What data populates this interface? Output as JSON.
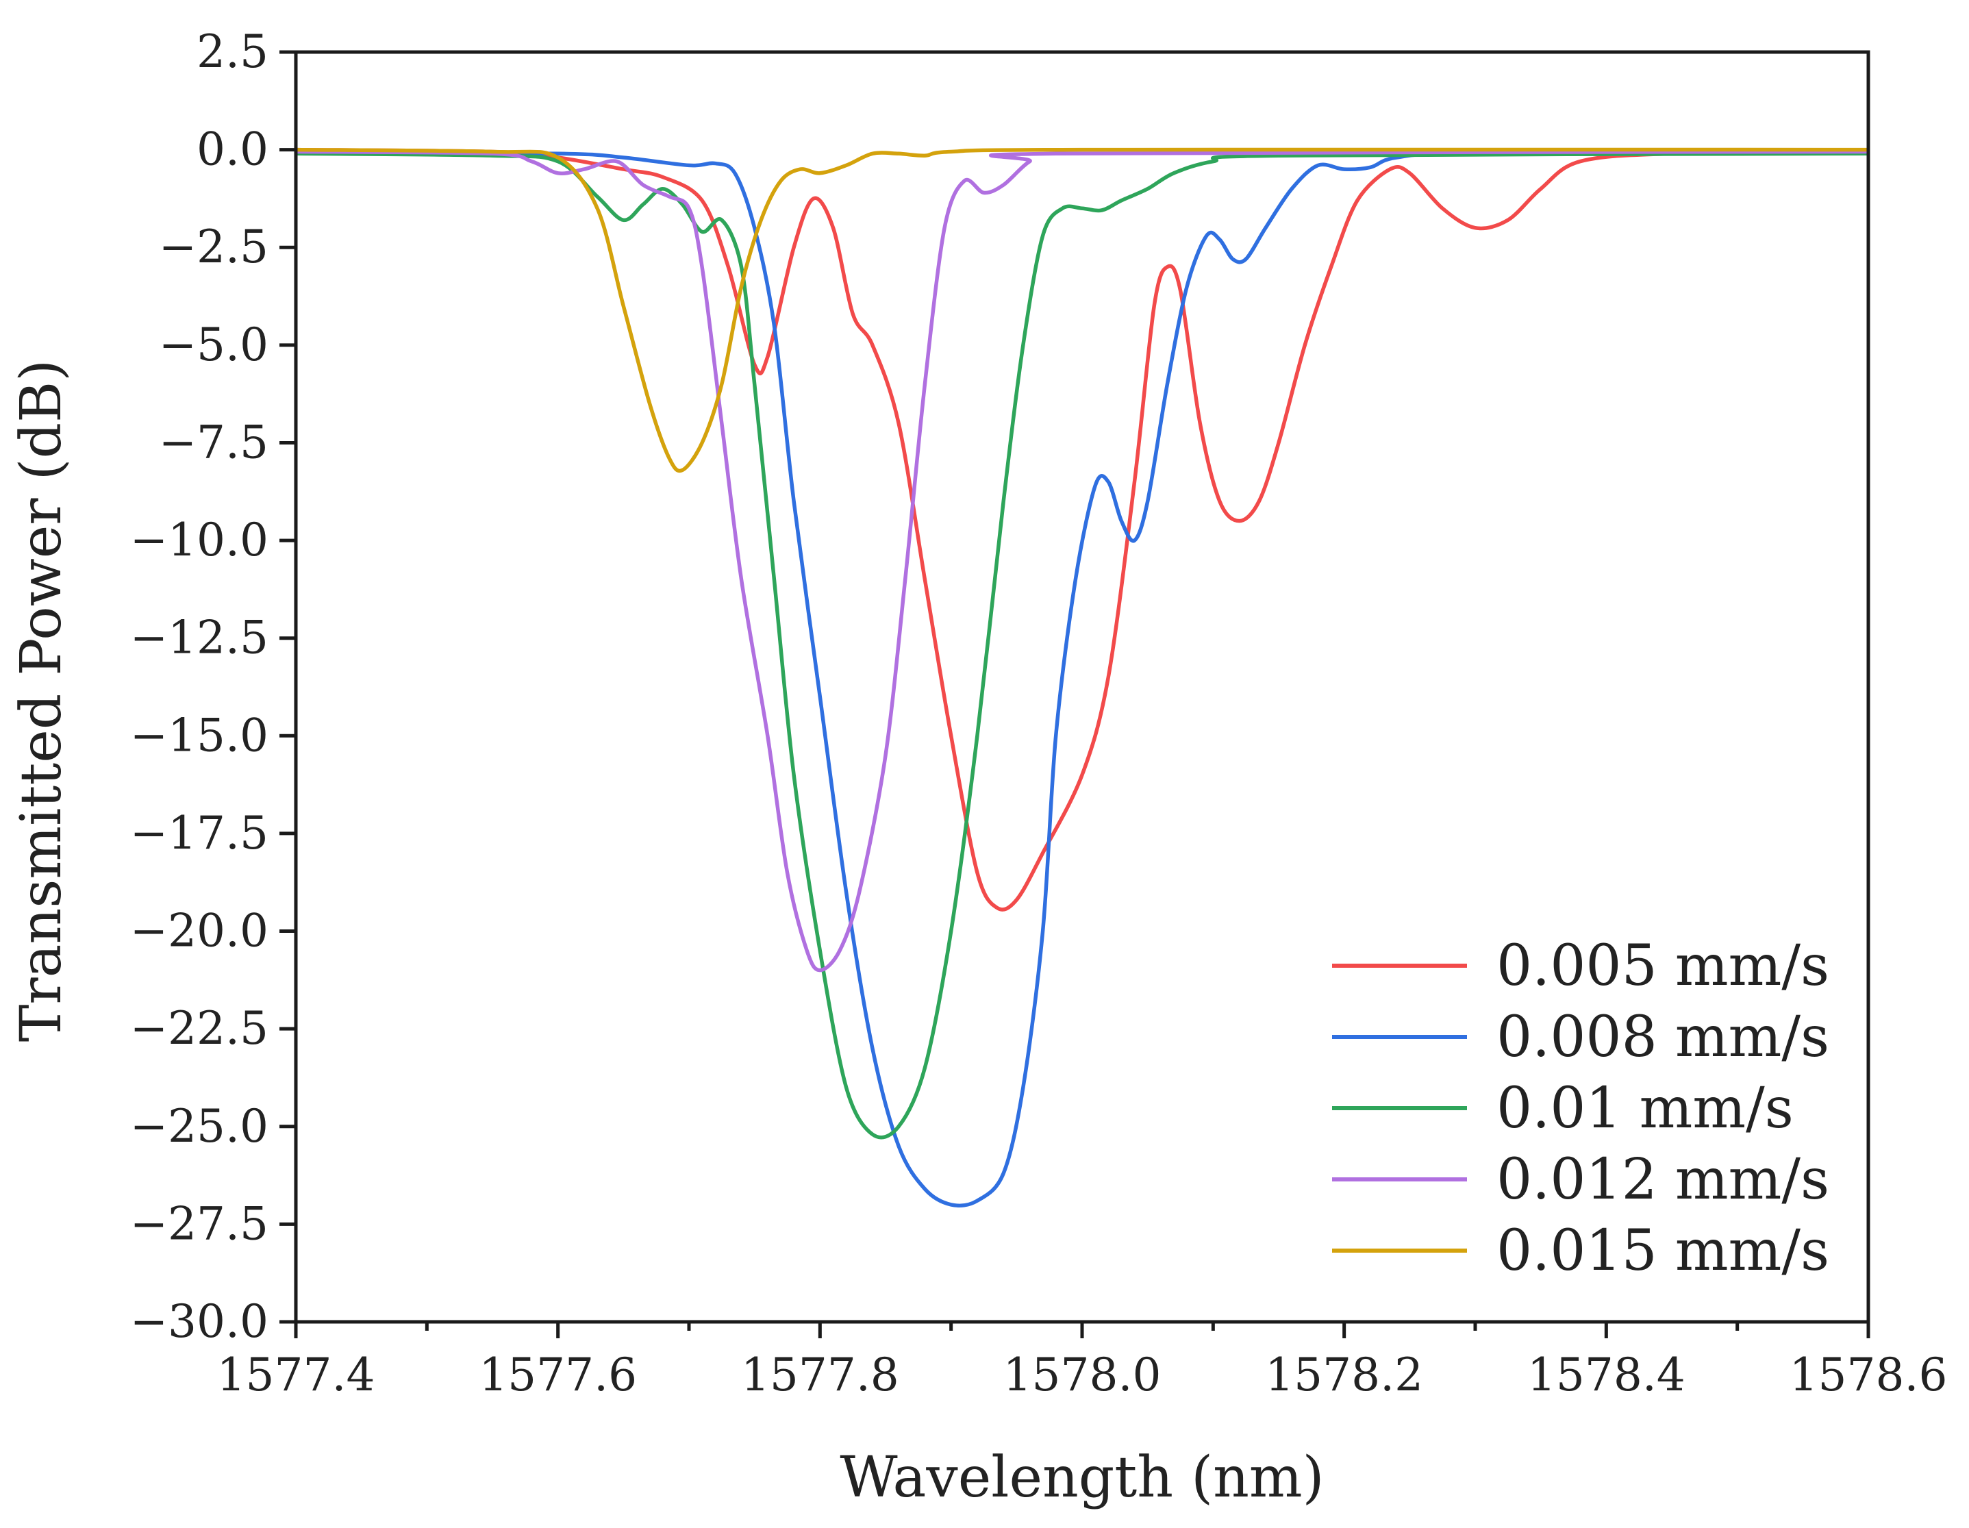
{
  "chart_data": {
    "type": "line",
    "title": "",
    "xlabel": "Wavelength (nm)",
    "ylabel": "Transmitted Power (dB)",
    "xlim": [
      1577.4,
      1578.6
    ],
    "ylim": [
      -30.0,
      2.5
    ],
    "x_ticks": [
      1577.4,
      1577.6,
      1577.8,
      1578.0,
      1578.2,
      1578.4,
      1578.6
    ],
    "x_tick_labels": [
      "1577.4",
      "1577.6",
      "1577.8",
      "1578.0",
      "1578.2",
      "1578.4",
      "1578.6"
    ],
    "x_minor_ticks": [
      1577.5,
      1577.7,
      1577.9,
      1578.1,
      1578.3,
      1578.5
    ],
    "y_ticks": [
      2.5,
      0.0,
      -2.5,
      -5.0,
      -7.5,
      -10.0,
      -12.5,
      -15.0,
      -17.5,
      -20.0,
      -22.5,
      -25.0,
      -27.5,
      -30.0
    ],
    "y_tick_labels": [
      "2.5",
      "0.0",
      "−2.5",
      "−5.0",
      "−7.5",
      "−10.0",
      "−12.5",
      "−15.0",
      "−17.5",
      "−20.0",
      "−22.5",
      "−25.0",
      "−27.5",
      "−30.0"
    ],
    "grid": false,
    "legend_position": "bottom-right",
    "series": [
      {
        "name": "0.005 mm/s",
        "color": "#f24a4a",
        "points": [
          [
            1577.4,
            0.0
          ],
          [
            1577.55,
            -0.05
          ],
          [
            1577.6,
            -0.2
          ],
          [
            1577.65,
            -0.5
          ],
          [
            1577.68,
            -0.7
          ],
          [
            1577.71,
            -1.3
          ],
          [
            1577.73,
            -3.0
          ],
          [
            1577.75,
            -5.5
          ],
          [
            1577.76,
            -5.3
          ],
          [
            1577.78,
            -2.5
          ],
          [
            1577.795,
            -1.25
          ],
          [
            1577.81,
            -2.0
          ],
          [
            1577.825,
            -4.2
          ],
          [
            1577.84,
            -5.0
          ],
          [
            1577.86,
            -7.0
          ],
          [
            1577.88,
            -11.0
          ],
          [
            1577.9,
            -15.0
          ],
          [
            1577.92,
            -18.5
          ],
          [
            1577.935,
            -19.4
          ],
          [
            1577.95,
            -19.2
          ],
          [
            1577.97,
            -18.0
          ],
          [
            1578.0,
            -16.0
          ],
          [
            1578.02,
            -13.5
          ],
          [
            1578.04,
            -8.5
          ],
          [
            1578.055,
            -4.0
          ],
          [
            1578.065,
            -3.0
          ],
          [
            1578.075,
            -3.6
          ],
          [
            1578.09,
            -7.0
          ],
          [
            1578.105,
            -9.0
          ],
          [
            1578.12,
            -9.5
          ],
          [
            1578.135,
            -9.0
          ],
          [
            1578.15,
            -7.5
          ],
          [
            1578.17,
            -5.0
          ],
          [
            1578.19,
            -3.0
          ],
          [
            1578.21,
            -1.3
          ],
          [
            1578.235,
            -0.5
          ],
          [
            1578.25,
            -0.6
          ],
          [
            1578.275,
            -1.5
          ],
          [
            1578.3,
            -2.0
          ],
          [
            1578.325,
            -1.8
          ],
          [
            1578.35,
            -1.0
          ],
          [
            1578.38,
            -0.3
          ],
          [
            1578.45,
            -0.1
          ],
          [
            1578.6,
            -0.05
          ]
        ]
      },
      {
        "name": "0.008 mm/s",
        "color": "#2f6fe0",
        "points": [
          [
            1577.4,
            -0.05
          ],
          [
            1577.6,
            -0.1
          ],
          [
            1577.65,
            -0.2
          ],
          [
            1577.7,
            -0.4
          ],
          [
            1577.72,
            -0.35
          ],
          [
            1577.735,
            -0.6
          ],
          [
            1577.75,
            -2.0
          ],
          [
            1577.765,
            -4.5
          ],
          [
            1577.78,
            -9.0
          ],
          [
            1577.8,
            -14.0
          ],
          [
            1577.82,
            -19.0
          ],
          [
            1577.84,
            -23.0
          ],
          [
            1577.86,
            -25.5
          ],
          [
            1577.88,
            -26.6
          ],
          [
            1577.9,
            -27.0
          ],
          [
            1577.92,
            -26.9
          ],
          [
            1577.94,
            -26.2
          ],
          [
            1577.955,
            -24.0
          ],
          [
            1577.97,
            -20.0
          ],
          [
            1577.98,
            -15.0
          ],
          [
            1577.995,
            -11.0
          ],
          [
            1578.01,
            -8.6
          ],
          [
            1578.02,
            -8.5
          ],
          [
            1578.03,
            -9.5
          ],
          [
            1578.04,
            -10.0
          ],
          [
            1578.05,
            -9.0
          ],
          [
            1578.065,
            -6.0
          ],
          [
            1578.08,
            -3.5
          ],
          [
            1578.095,
            -2.2
          ],
          [
            1578.105,
            -2.3
          ],
          [
            1578.115,
            -2.8
          ],
          [
            1578.125,
            -2.8
          ],
          [
            1578.14,
            -2.0
          ],
          [
            1578.16,
            -1.0
          ],
          [
            1578.18,
            -0.4
          ],
          [
            1578.2,
            -0.5
          ],
          [
            1578.22,
            -0.45
          ],
          [
            1578.24,
            -0.2
          ],
          [
            1578.3,
            -0.1
          ],
          [
            1578.6,
            -0.1
          ]
        ]
      },
      {
        "name": "0.01 mm/s",
        "color": "#2ea55a",
        "points": [
          [
            1577.4,
            -0.1
          ],
          [
            1577.55,
            -0.15
          ],
          [
            1577.6,
            -0.3
          ],
          [
            1577.63,
            -1.2
          ],
          [
            1577.65,
            -1.8
          ],
          [
            1577.665,
            -1.4
          ],
          [
            1577.68,
            -1.0
          ],
          [
            1577.695,
            -1.4
          ],
          [
            1577.71,
            -2.1
          ],
          [
            1577.725,
            -1.8
          ],
          [
            1577.74,
            -3.0
          ],
          [
            1577.75,
            -6.0
          ],
          [
            1577.765,
            -11.0
          ],
          [
            1577.78,
            -16.0
          ],
          [
            1577.8,
            -20.5
          ],
          [
            1577.82,
            -24.0
          ],
          [
            1577.84,
            -25.2
          ],
          [
            1577.86,
            -25.0
          ],
          [
            1577.88,
            -23.5
          ],
          [
            1577.9,
            -20.0
          ],
          [
            1577.92,
            -15.0
          ],
          [
            1577.94,
            -9.0
          ],
          [
            1577.955,
            -5.0
          ],
          [
            1577.97,
            -2.2
          ],
          [
            1577.985,
            -1.5
          ],
          [
            1578.0,
            -1.5
          ],
          [
            1578.015,
            -1.55
          ],
          [
            1578.03,
            -1.3
          ],
          [
            1578.05,
            -1.0
          ],
          [
            1578.07,
            -0.6
          ],
          [
            1578.1,
            -0.3
          ],
          [
            1578.15,
            -0.15
          ],
          [
            1578.6,
            -0.1
          ]
        ]
      },
      {
        "name": "0.012 mm/s",
        "color": "#b070e0",
        "points": [
          [
            1577.4,
            -0.05
          ],
          [
            1577.55,
            -0.1
          ],
          [
            1577.58,
            -0.3
          ],
          [
            1577.6,
            -0.6
          ],
          [
            1577.62,
            -0.5
          ],
          [
            1577.645,
            -0.3
          ],
          [
            1577.665,
            -0.9
          ],
          [
            1577.685,
            -1.2
          ],
          [
            1577.7,
            -1.5
          ],
          [
            1577.71,
            -3.0
          ],
          [
            1577.725,
            -7.0
          ],
          [
            1577.74,
            -11.0
          ],
          [
            1577.76,
            -15.0
          ],
          [
            1577.775,
            -18.5
          ],
          [
            1577.79,
            -20.5
          ],
          [
            1577.8,
            -21.0
          ],
          [
            1577.815,
            -20.5
          ],
          [
            1577.83,
            -19.0
          ],
          [
            1577.85,
            -15.5
          ],
          [
            1577.865,
            -11.0
          ],
          [
            1577.88,
            -6.0
          ],
          [
            1577.895,
            -2.0
          ],
          [
            1577.91,
            -0.8
          ],
          [
            1577.925,
            -1.1
          ],
          [
            1577.94,
            -0.9
          ],
          [
            1577.96,
            -0.3
          ],
          [
            1577.98,
            -0.1
          ],
          [
            1578.6,
            -0.05
          ]
        ]
      },
      {
        "name": "0.015 mm/s",
        "color": "#d4a20c",
        "points": [
          [
            1577.4,
            0.0
          ],
          [
            1577.55,
            -0.05
          ],
          [
            1577.6,
            -0.2
          ],
          [
            1577.63,
            -1.5
          ],
          [
            1577.65,
            -4.0
          ],
          [
            1577.67,
            -6.5
          ],
          [
            1577.685,
            -7.9
          ],
          [
            1577.695,
            -8.2
          ],
          [
            1577.71,
            -7.5
          ],
          [
            1577.725,
            -6.0
          ],
          [
            1577.74,
            -3.5
          ],
          [
            1577.755,
            -1.8
          ],
          [
            1577.77,
            -0.8
          ],
          [
            1577.785,
            -0.5
          ],
          [
            1577.8,
            -0.6
          ],
          [
            1577.82,
            -0.4
          ],
          [
            1577.84,
            -0.1
          ],
          [
            1577.86,
            -0.1
          ],
          [
            1577.88,
            -0.15
          ],
          [
            1577.9,
            -0.05
          ],
          [
            1578.0,
            0.0
          ],
          [
            1578.6,
            0.0
          ]
        ]
      }
    ]
  }
}
